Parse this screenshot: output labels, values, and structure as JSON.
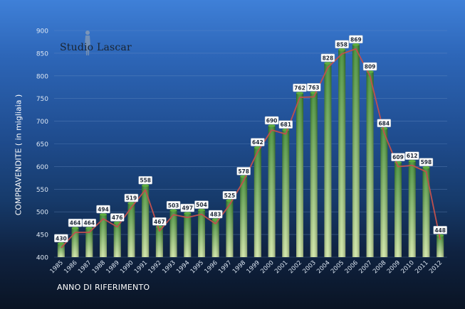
{
  "watermark": {
    "text": "Studio Lascar"
  },
  "colors": {
    "bar_top": "#3a8a2e",
    "bar_bottom": "#cfe6a3",
    "line": "#c0504d",
    "label_bg": "#ffffff",
    "label_text": "#1f2a3a",
    "axis_text": "#dce6f2",
    "grid": "#6f93c4"
  },
  "chart_data": {
    "type": "bar",
    "title": "",
    "xlabel": "ANNO DI RIFERIMENTO",
    "ylabel": "COMPRAVENDITE   ( in migliaia )",
    "ylim": [
      400,
      900
    ],
    "yticks": [
      400,
      450,
      500,
      550,
      600,
      650,
      700,
      750,
      800,
      850,
      900
    ],
    "grid": true,
    "categories": [
      "1985",
      "1986",
      "1987",
      "1988",
      "1989",
      "1990",
      "1991",
      "1992",
      "1993",
      "1994",
      "1995",
      "1996",
      "1997",
      "1998",
      "1999",
      "2000",
      "2001",
      "2002",
      "2003",
      "2004",
      "2005",
      "2006",
      "2007",
      "2008",
      "2009",
      "2010",
      "2011",
      "2012"
    ],
    "values": [
      430,
      464,
      464,
      494,
      476,
      519,
      558,
      467,
      503,
      497,
      504,
      483,
      525,
      578,
      642,
      690,
      681,
      762,
      763,
      828,
      858,
      869,
      809,
      684,
      609,
      612,
      598,
      448
    ],
    "overlay_line": true
  }
}
